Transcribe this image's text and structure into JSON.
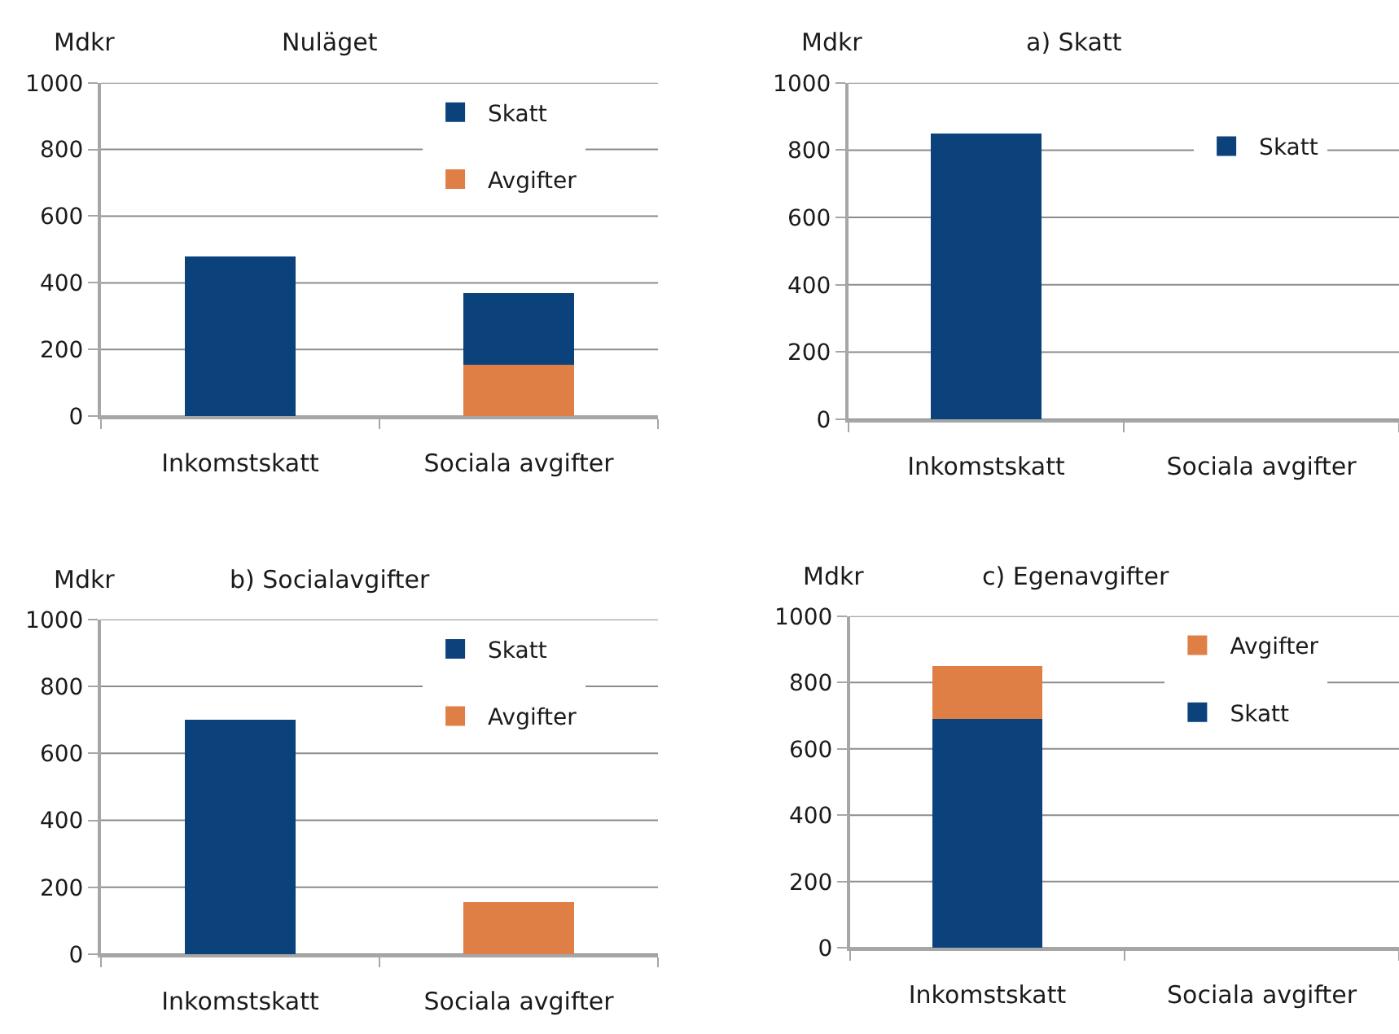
{
  "chart_data": [
    {
      "type": "bar",
      "title": "Nuläget",
      "ylabel": "Mdkr",
      "categories": [
        "Inkomstskatt",
        "Sociala avgifter"
      ],
      "stacked": true,
      "series": [
        {
          "name": "Avgifter",
          "color": "#df7f45",
          "values": [
            null,
            155
          ]
        },
        {
          "name": "Skatt",
          "color": "#0b427c",
          "values": [
            480,
            215
          ]
        }
      ],
      "ylim": [
        0,
        1000
      ],
      "yticks": [
        0,
        200,
        400,
        600,
        800,
        1000
      ],
      "grid": "y",
      "legend": "top right"
    },
    {
      "type": "bar",
      "title": "a) Skatt",
      "ylabel": "Mdkr",
      "categories": [
        "Inkomstskatt",
        "Sociala avgifter"
      ],
      "stacked": true,
      "series": [
        {
          "name": "Skatt",
          "color": "#0b427c",
          "values": [
            850,
            null
          ]
        }
      ],
      "ylim": [
        0,
        1000
      ],
      "yticks": [
        0,
        200,
        400,
        600,
        800,
        1000
      ],
      "grid": "y",
      "legend": "top right"
    },
    {
      "type": "bar",
      "title": "b) Socialavgifter",
      "ylabel": "Mdkr",
      "categories": [
        "Inkomstskatt",
        "Sociala avgifter"
      ],
      "stacked": true,
      "series": [
        {
          "name": "Avgifter",
          "color": "#df7f45",
          "values": [
            null,
            155
          ]
        },
        {
          "name": "Skatt",
          "color": "#0b427c",
          "values": [
            700,
            null
          ]
        }
      ],
      "ylim": [
        0,
        1000
      ],
      "yticks": [
        0,
        200,
        400,
        600,
        800,
        1000
      ],
      "grid": "y",
      "legend": "top right"
    },
    {
      "type": "bar",
      "title": "c) Egenavgifter",
      "ylabel": "Mdkr",
      "categories": [
        "Inkomstskatt",
        "Sociala avgifter"
      ],
      "stacked": true,
      "series": [
        {
          "name": "Skatt",
          "color": "#0b427c",
          "values": [
            690,
            null
          ]
        },
        {
          "name": "Avgifter",
          "color": "#df7f45",
          "values": [
            160,
            null
          ]
        }
      ],
      "ylim": [
        0,
        1000
      ],
      "yticks": [
        0,
        200,
        400,
        600,
        800,
        1000
      ],
      "grid": "y",
      "legend": "top right"
    }
  ]
}
